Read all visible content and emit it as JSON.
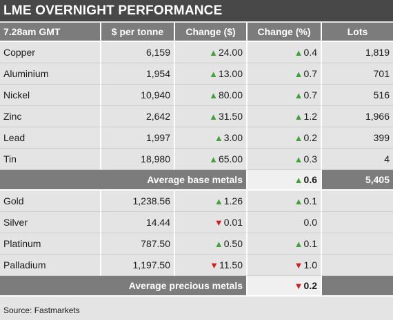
{
  "title": "LME OVERNIGHT PERFORMANCE",
  "headers": {
    "time": "7.28am GMT",
    "price": "$ per tonne",
    "change_usd": "Change ($)",
    "change_pct": "Change (%)",
    "lots": "Lots"
  },
  "base_metals": [
    {
      "name": "Copper",
      "price": "6,159",
      "change_usd": "24.00",
      "usd_dir": "up",
      "change_pct": "0.4",
      "pct_dir": "up",
      "lots": "1,819"
    },
    {
      "name": "Aluminium",
      "price": "1,954",
      "change_usd": "13.00",
      "usd_dir": "up",
      "change_pct": "0.7",
      "pct_dir": "up",
      "lots": "701"
    },
    {
      "name": "Nickel",
      "price": "10,940",
      "change_usd": "80.00",
      "usd_dir": "up",
      "change_pct": "0.7",
      "pct_dir": "up",
      "lots": "516"
    },
    {
      "name": "Zinc",
      "price": "2,642",
      "change_usd": "31.50",
      "usd_dir": "up",
      "change_pct": "1.2",
      "pct_dir": "up",
      "lots": "1,966"
    },
    {
      "name": "Lead",
      "price": "1,997",
      "change_usd": "3.00",
      "usd_dir": "up",
      "change_pct": "0.2",
      "pct_dir": "up",
      "lots": "399"
    },
    {
      "name": "Tin",
      "price": "18,980",
      "change_usd": "65.00",
      "usd_dir": "up",
      "change_pct": "0.3",
      "pct_dir": "up",
      "lots": "4"
    }
  ],
  "base_average": {
    "label": "Average base metals",
    "change_pct": "0.6",
    "pct_dir": "up",
    "lots": "5,405"
  },
  "precious_metals": [
    {
      "name": "Gold",
      "price": "1,238.56",
      "change_usd": "1.26",
      "usd_dir": "up",
      "change_pct": "0.1",
      "pct_dir": "up",
      "lots": ""
    },
    {
      "name": "Silver",
      "price": "14.44",
      "change_usd": "0.01",
      "usd_dir": "down",
      "change_pct": "0.0",
      "pct_dir": "none",
      "lots": ""
    },
    {
      "name": "Platinum",
      "price": "787.50",
      "change_usd": "0.50",
      "usd_dir": "up",
      "change_pct": "0.1",
      "pct_dir": "up",
      "lots": ""
    },
    {
      "name": "Palladium",
      "price": "1,197.50",
      "change_usd": "11.50",
      "usd_dir": "down",
      "change_pct": "1.0",
      "pct_dir": "down",
      "lots": ""
    }
  ],
  "precious_average": {
    "label": "Average precious metals",
    "change_pct": "0.2",
    "pct_dir": "down"
  },
  "source": "Source: Fastmarkets",
  "colors": {
    "up": "#3fa33a",
    "down": "#d0211c",
    "header": "#7c7c7c",
    "title": "#484848"
  },
  "icons": {
    "up": "triangle-up-icon",
    "down": "triangle-down-icon"
  }
}
